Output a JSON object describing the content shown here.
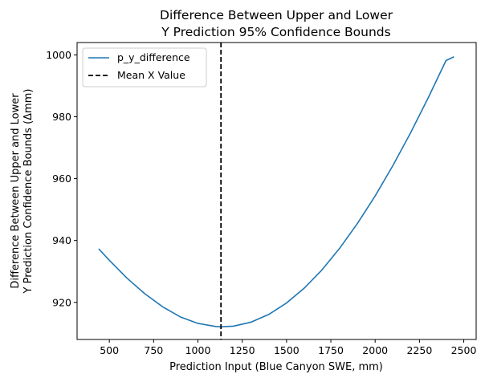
{
  "chart_data": {
    "type": "line",
    "title_lines": [
      "Difference Between Upper and Lower",
      "Y Prediction 95% Confidence Bounds"
    ],
    "xlabel": "Prediction Input (Blue Canyon SWE, mm)",
    "ylabel_lines": [
      "Difference Between Upper and Lower",
      "Y Prediction Confidence Bounds (Δmm)"
    ],
    "xlim": [
      318,
      2570
    ],
    "ylim": [
      908,
      1004
    ],
    "xticks": [
      500,
      750,
      1000,
      1250,
      1500,
      1750,
      2000,
      2250,
      2500
    ],
    "yticks": [
      920,
      940,
      960,
      980,
      1000
    ],
    "grid": false,
    "legend_position": "top-left",
    "series": [
      {
        "name": "p_y_difference",
        "color": "#1f77b4",
        "x": [
          440,
          500,
          600,
          700,
          800,
          900,
          1000,
          1100,
          1130,
          1200,
          1300,
          1400,
          1500,
          1600,
          1700,
          1800,
          1900,
          2000,
          2100,
          2200,
          2300,
          2400,
          2445
        ],
        "y": [
          937.3,
          933.6,
          927.8,
          922.8,
          918.6,
          915.3,
          913.2,
          912.2,
          912.1,
          912.3,
          913.6,
          916.1,
          919.8,
          924.6,
          930.5,
          937.5,
          945.5,
          954.4,
          964.2,
          974.8,
          986.2,
          998.2,
          999.4
        ]
      }
    ],
    "vlines": [
      {
        "name": "Mean X Value",
        "x": 1130,
        "color": "#000000",
        "style": "dashed"
      }
    ]
  }
}
